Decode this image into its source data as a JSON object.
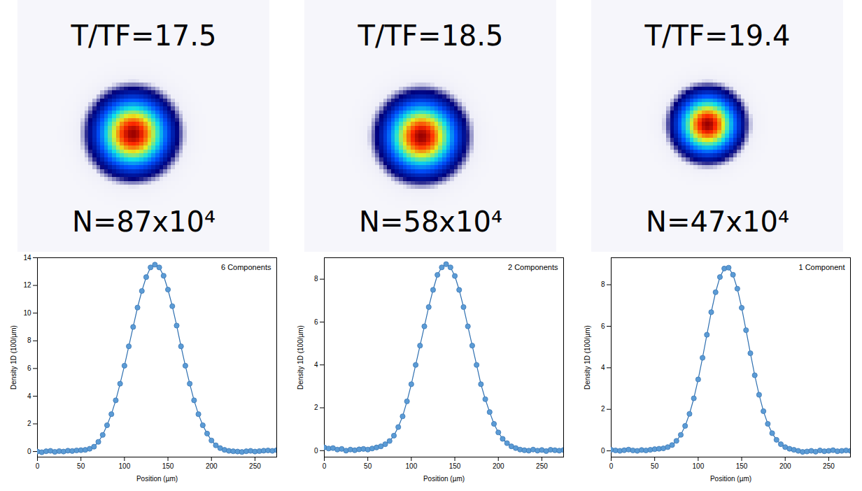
{
  "chart_data": [
    {
      "type": "line",
      "title": "T/TF=17.5",
      "subtitle": "N=87x10⁴",
      "annotation": "6 Components",
      "x_label": "Position (µm)",
      "y_label": "Density 1D (100/µm)",
      "marker": "circle",
      "color": "#5b9bd5",
      "xlim": [
        0,
        275
      ],
      "xticks": [
        0,
        50,
        100,
        150,
        200,
        250
      ],
      "ylim": [
        -0.4,
        14
      ],
      "yticks": [
        0,
        2,
        4,
        6,
        8,
        10,
        12,
        14
      ],
      "x": [
        0,
        5,
        10,
        15,
        20,
        25,
        30,
        35,
        40,
        45,
        50,
        55,
        60,
        65,
        70,
        75,
        80,
        85,
        90,
        95,
        100,
        105,
        110,
        115,
        120,
        125,
        130,
        135,
        140,
        145,
        150,
        155,
        160,
        165,
        170,
        175,
        180,
        185,
        190,
        195,
        200,
        205,
        210,
        215,
        220,
        225,
        230,
        235,
        240,
        245,
        250,
        255,
        260,
        265,
        270,
        275
      ],
      "values": [
        0.0,
        -0.05,
        0.02,
        0.05,
        -0.02,
        0.03,
        0.0,
        0.06,
        0.04,
        0.08,
        0.1,
        0.12,
        0.2,
        0.35,
        0.7,
        1.2,
        1.9,
        2.7,
        3.7,
        4.9,
        6.2,
        7.6,
        9.0,
        10.4,
        11.6,
        12.6,
        13.3,
        13.5,
        13.3,
        12.7,
        11.7,
        10.5,
        9.1,
        7.6,
        6.2,
        4.9,
        3.7,
        2.7,
        1.9,
        1.3,
        0.8,
        0.45,
        0.25,
        0.12,
        0.05,
        0.02,
        0.0,
        -0.03,
        0.02,
        0.05,
        0.0,
        0.03,
        0.06,
        0.08,
        0.05,
        0.1
      ],
      "image": {
        "xlim": [
          0,
          275
        ],
        "ylim": [
          0,
          275
        ],
        "cloud": {
          "center_x": 126,
          "center_y": 146,
          "sigma": 24
        }
      }
    },
    {
      "type": "line",
      "title": "T/TF=18.5",
      "subtitle": "N=58x10⁴",
      "annotation": "2 Components",
      "x_label": "Position (µm)",
      "y_label": "Density 1D (100/µm)",
      "marker": "circle",
      "color": "#5b9bd5",
      "xlim": [
        0,
        275
      ],
      "xticks": [
        0,
        50,
        100,
        150,
        200,
        250
      ],
      "ylim": [
        -0.3,
        9
      ],
      "yticks": [
        0,
        2,
        4,
        6,
        8
      ],
      "x": [
        0,
        5,
        10,
        15,
        20,
        25,
        30,
        35,
        40,
        45,
        50,
        55,
        60,
        65,
        70,
        75,
        80,
        85,
        90,
        95,
        100,
        105,
        110,
        115,
        120,
        125,
        130,
        135,
        140,
        145,
        150,
        155,
        160,
        165,
        170,
        175,
        180,
        185,
        190,
        195,
        200,
        205,
        210,
        215,
        220,
        225,
        230,
        235,
        240,
        245,
        250,
        255,
        260,
        265,
        270,
        275
      ],
      "values": [
        0.15,
        0.1,
        0.12,
        0.05,
        0.08,
        0.0,
        0.05,
        0.02,
        0.06,
        0.08,
        0.05,
        0.1,
        0.15,
        0.2,
        0.3,
        0.45,
        0.7,
        1.1,
        1.6,
        2.3,
        3.1,
        4.0,
        4.9,
        5.8,
        6.7,
        7.5,
        8.2,
        8.55,
        8.7,
        8.55,
        8.15,
        7.5,
        6.7,
        5.8,
        4.9,
        4.0,
        3.1,
        2.4,
        1.8,
        1.25,
        0.85,
        0.55,
        0.35,
        0.2,
        0.12,
        0.05,
        0.02,
        0.0,
        0.05,
        0.0,
        0.03,
        -0.02,
        0.04,
        0.02,
        0.0,
        0.03
      ],
      "image": {
        "xlim": [
          0,
          275
        ],
        "ylim": [
          0,
          275
        ],
        "cloud": {
          "center_x": 128,
          "center_y": 149,
          "sigma": 24
        }
      }
    },
    {
      "type": "line",
      "title": "T/TF=19.4",
      "subtitle": "N=47x10⁴",
      "annotation": "1 Component",
      "x_label": "Position (µm)",
      "y_label": "Density 1D (100/µm)",
      "marker": "circle",
      "color": "#5b9bd5",
      "xlim": [
        0,
        275
      ],
      "xticks": [
        0,
        50,
        100,
        150,
        200,
        250
      ],
      "ylim": [
        -0.3,
        9.3
      ],
      "yticks": [
        0,
        2,
        4,
        6,
        8
      ],
      "x": [
        0,
        5,
        10,
        15,
        20,
        25,
        30,
        35,
        40,
        45,
        50,
        55,
        60,
        65,
        70,
        75,
        80,
        85,
        90,
        95,
        100,
        105,
        110,
        115,
        120,
        125,
        130,
        135,
        140,
        145,
        150,
        155,
        160,
        165,
        170,
        175,
        180,
        185,
        190,
        195,
        200,
        205,
        210,
        215,
        220,
        225,
        230,
        235,
        240,
        245,
        250,
        255,
        260,
        265,
        270,
        275
      ],
      "values": [
        0.05,
        0.02,
        0.0,
        0.03,
        0.06,
        0.02,
        0.0,
        0.04,
        0.02,
        0.05,
        0.08,
        0.1,
        0.12,
        0.18,
        0.28,
        0.48,
        0.77,
        1.2,
        1.78,
        2.53,
        3.44,
        4.48,
        5.59,
        6.68,
        7.64,
        8.37,
        8.78,
        8.82,
        8.48,
        7.81,
        6.89,
        5.81,
        4.7,
        3.64,
        2.7,
        1.91,
        1.3,
        0.85,
        0.53,
        0.32,
        0.18,
        0.1,
        0.05,
        0.0,
        -0.05,
        -0.03,
        0.0,
        -0.04,
        0.02,
        -0.02,
        0.0,
        0.03,
        -0.02,
        0.0,
        0.02,
        0.0
      ],
      "image": {
        "xlim": [
          0,
          275
        ],
        "ylim": [
          0,
          275
        ],
        "cloud": {
          "center_x": 127,
          "center_y": 136,
          "sigma": 20
        }
      }
    }
  ]
}
